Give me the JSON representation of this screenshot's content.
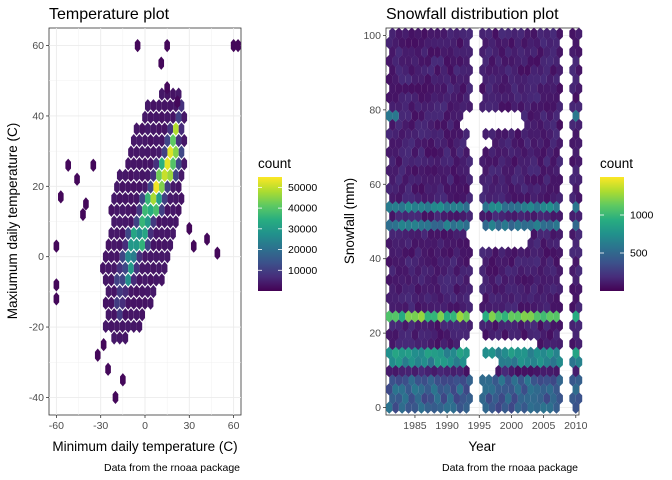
{
  "chart_data": [
    {
      "type": "heatmap",
      "subtype": "hexbin",
      "title": "Temperature plot",
      "xlabel": "Minimum daily temperature (C)",
      "ylabel": "Maxiumum daily temperature (C)",
      "caption": "Data from the rnoaa package",
      "xlim": [
        -65,
        65
      ],
      "ylim": [
        -45,
        65
      ],
      "x_ticks": [
        -60,
        -30,
        0,
        30,
        60
      ],
      "x_tick_labels": [
        "-60",
        "-30",
        "0",
        "30",
        "60"
      ],
      "y_ticks": [
        -40,
        -20,
        0,
        20,
        40,
        60
      ],
      "y_tick_labels": [
        "-40",
        "-20",
        "0",
        "20",
        "40",
        "60"
      ],
      "grid": true,
      "colorscale": "viridis",
      "legend": {
        "title": "count",
        "placement": "right",
        "range": [
          0,
          55000
        ],
        "ticks": [
          10000,
          20000,
          30000,
          40000,
          50000
        ],
        "tick_labels": [
          "10000",
          "20000",
          "30000",
          "40000",
          "50000"
        ]
      }
    },
    {
      "type": "heatmap",
      "subtype": "hexbin",
      "title": "Snowfall distribution plot",
      "xlabel": "Year",
      "ylabel": "Snowfall (mm)",
      "caption": "Data from the rnoaa package",
      "xlim": [
        1980.5,
        2010.5
      ],
      "ylim": [
        -2,
        102
      ],
      "x_ticks": [
        1985,
        1990,
        1995,
        2000,
        2005,
        2010
      ],
      "x_tick_labels": [
        "1985",
        "1990",
        "1995",
        "2000",
        "2005",
        "2010"
      ],
      "y_ticks": [
        0,
        20,
        40,
        60,
        80,
        100
      ],
      "y_tick_labels": [
        "0",
        "20",
        "40",
        "60",
        "80",
        "100"
      ],
      "grid": true,
      "colorscale": "viridis",
      "legend": {
        "title": "count",
        "placement": "right",
        "range": [
          0,
          1500
        ],
        "ticks": [
          500,
          1000
        ],
        "tick_labels": [
          "500",
          "1000"
        ]
      }
    }
  ]
}
